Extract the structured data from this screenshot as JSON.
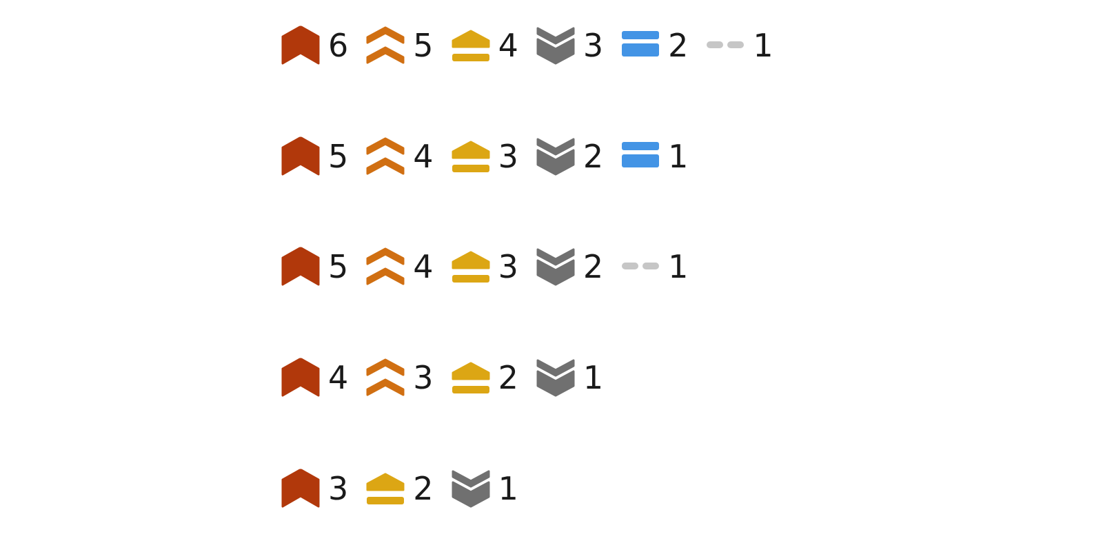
{
  "colors": {
    "critical": "#b1380b",
    "high": "#d06f12",
    "medium": "#dca614",
    "low": "#707070",
    "info": "#4394e5",
    "none": "#c6c6c6"
  },
  "scales": [
    {
      "levels": [
        {
          "icon": "critical-flag-icon",
          "number": "6"
        },
        {
          "icon": "double-chevron-up-icon",
          "number": "5"
        },
        {
          "icon": "arrow-up-bar-icon",
          "number": "4"
        },
        {
          "icon": "double-chevron-down-icon",
          "number": "3"
        },
        {
          "icon": "double-bar-icon",
          "number": "2"
        },
        {
          "icon": "dashed-line-icon",
          "number": "1"
        }
      ]
    },
    {
      "levels": [
        {
          "icon": "critical-flag-icon",
          "number": "5"
        },
        {
          "icon": "double-chevron-up-icon",
          "number": "4"
        },
        {
          "icon": "arrow-up-bar-icon",
          "number": "3"
        },
        {
          "icon": "double-chevron-down-icon",
          "number": "2"
        },
        {
          "icon": "double-bar-icon",
          "number": "1"
        }
      ]
    },
    {
      "levels": [
        {
          "icon": "critical-flag-icon",
          "number": "5"
        },
        {
          "icon": "double-chevron-up-icon",
          "number": "4"
        },
        {
          "icon": "arrow-up-bar-icon",
          "number": "3"
        },
        {
          "icon": "double-chevron-down-icon",
          "number": "2"
        },
        {
          "icon": "dashed-line-icon",
          "number": "1"
        }
      ]
    },
    {
      "levels": [
        {
          "icon": "critical-flag-icon",
          "number": "4"
        },
        {
          "icon": "double-chevron-up-icon",
          "number": "3"
        },
        {
          "icon": "arrow-up-bar-icon",
          "number": "2"
        },
        {
          "icon": "double-chevron-down-icon",
          "number": "1"
        }
      ]
    },
    {
      "levels": [
        {
          "icon": "critical-flag-icon",
          "number": "3"
        },
        {
          "icon": "arrow-up-bar-icon",
          "number": "2"
        },
        {
          "icon": "double-chevron-down-icon",
          "number": "1"
        }
      ]
    }
  ]
}
